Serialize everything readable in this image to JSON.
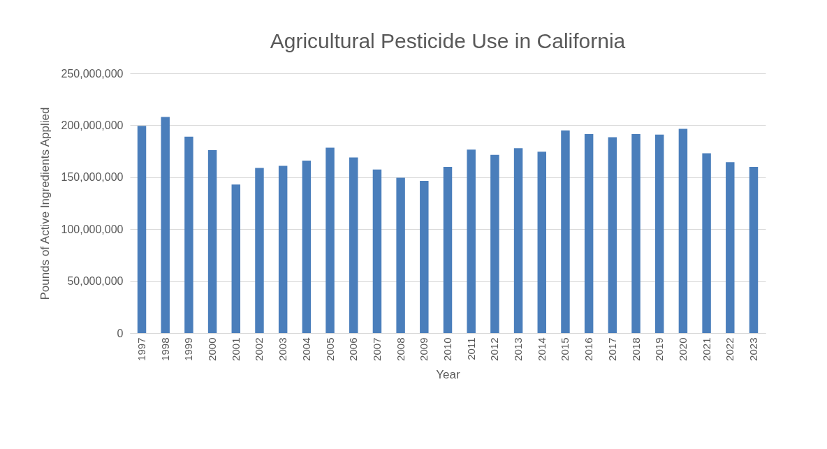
{
  "chart_data": {
    "type": "bar",
    "title": "Agricultural Pesticide Use in California",
    "xlabel": "Year",
    "ylabel": "Pounds of Active Ingredients Applied",
    "categories": [
      "1997",
      "1998",
      "1999",
      "2000",
      "2001",
      "2002",
      "2003",
      "2004",
      "2005",
      "2006",
      "2007",
      "2008",
      "2009",
      "2010",
      "2011",
      "2012",
      "2013",
      "2014",
      "2015",
      "2016",
      "2017",
      "2018",
      "2019",
      "2020",
      "2021",
      "2022",
      "2023"
    ],
    "values": [
      199500000,
      208000000,
      189000000,
      176000000,
      143000000,
      159000000,
      161000000,
      166000000,
      178500000,
      169000000,
      157500000,
      149500000,
      146500000,
      160000000,
      176500000,
      171500000,
      178000000,
      174500000,
      195000000,
      191500000,
      188500000,
      191500000,
      191000000,
      196500000,
      173000000,
      164500000,
      160000000
    ],
    "color": "#4a7ebb",
    "ylim": [
      0,
      250000000
    ],
    "yticks": [
      0,
      {
        "value": 50000000,
        "label": "50,000,000"
      },
      {
        "value": 100000000,
        "label": "100,000,000"
      },
      {
        "value": 150000000,
        "label": "150,000,000"
      },
      {
        "value": 200000000,
        "label": "200,000,000"
      },
      {
        "value": 250000000,
        "label": "250,000,000"
      }
    ],
    "grid": "y"
  }
}
